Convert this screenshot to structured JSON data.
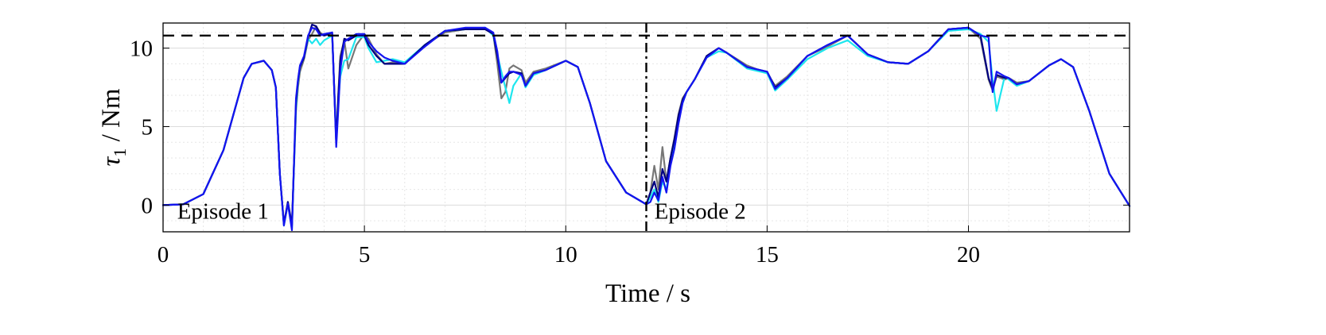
{
  "chart_data": {
    "type": "line",
    "xlabel": "Time / s",
    "ylabel": "τ1 / Nm",
    "ylabel_main": "τ",
    "ylabel_sub": "1",
    "ylabel_rest": " / Nm",
    "xlim": [
      0,
      24
    ],
    "ylim": [
      -1.7,
      11.6
    ],
    "x_ticks": [
      0,
      5,
      10,
      15,
      20
    ],
    "x_tick_labels": [
      "0",
      "5",
      "10",
      "15",
      "20"
    ],
    "y_ticks": [
      0,
      5,
      10
    ],
    "y_tick_labels": [
      "0",
      "5",
      "10"
    ],
    "grid": true,
    "minor_grid": true,
    "colors": {
      "gray": "#777777",
      "cyan": "#1ee6ee",
      "navy": "#000080",
      "blue": "#1414f0",
      "limit": "#000000",
      "divider": "#000000"
    },
    "threshold": {
      "y": 10.8,
      "style": "dashed"
    },
    "divider": {
      "x": 12,
      "style": "dash-dot"
    },
    "annotations": [
      {
        "text": "Episode 1",
        "x": 0.35,
        "y": -0.35
      },
      {
        "text": "Episode 2",
        "x": 12.2,
        "y": -0.35
      }
    ],
    "series": [
      {
        "color_key": "gray",
        "x": [
          0,
          0.5,
          1,
          1.5,
          2,
          2.2,
          2.5,
          2.7,
          2.8,
          2.9,
          3.0,
          3.1,
          3.2,
          3.3,
          3.35,
          3.4,
          3.5,
          3.6,
          3.7,
          3.8,
          3.9,
          4.0,
          4.2,
          4.3,
          4.35,
          4.4,
          4.5,
          4.6,
          4.8,
          5.0,
          5.1,
          5.3,
          5.5,
          5.7,
          6.0,
          6.5,
          7.0,
          7.5,
          8.0,
          8.2,
          8.3,
          8.4,
          8.5,
          8.6,
          8.7,
          8.9,
          9.0,
          9.2,
          9.5,
          10.0,
          10.3,
          10.6,
          11.0,
          11.5,
          12.0,
          12.1,
          12.2,
          12.3,
          12.4,
          12.5,
          12.6,
          12.7,
          12.8,
          12.9,
          13.0,
          13.2,
          13.5,
          13.8,
          14.0,
          14.5,
          15.0,
          15.2,
          15.5,
          16.0,
          16.5,
          17.0,
          17.5,
          18.0,
          18.5,
          19.0,
          19.5,
          20.0,
          20.3,
          20.5,
          20.6,
          20.7,
          20.9,
          21.0,
          21.2,
          21.5,
          22.0,
          22.3,
          22.6,
          23.0,
          23.5,
          24.0
        ],
        "y": [
          0,
          0.05,
          0.7,
          3.5,
          8.1,
          9.0,
          9.2,
          8.6,
          7.5,
          2.0,
          -1.2,
          0.2,
          -1.2,
          6.0,
          7.5,
          8.5,
          9.3,
          10.5,
          10.9,
          11.4,
          11.0,
          10.8,
          10.9,
          4.0,
          7.0,
          9.5,
          10.5,
          8.7,
          10.2,
          10.9,
          10.6,
          9.6,
          9.0,
          9.1,
          9.0,
          10.2,
          11.0,
          11.2,
          11.2,
          10.9,
          9.0,
          6.8,
          7.2,
          8.7,
          8.9,
          8.6,
          7.8,
          8.5,
          8.7,
          9.2,
          8.8,
          6.5,
          2.8,
          0.8,
          0.05,
          0.8,
          2.5,
          1.0,
          3.7,
          1.5,
          3.0,
          4.3,
          5.8,
          6.8,
          7.2,
          8.0,
          9.5,
          10.0,
          9.7,
          8.9,
          8.4,
          7.6,
          8.2,
          9.5,
          10.1,
          10.8,
          9.6,
          9.1,
          9.0,
          9.8,
          11.2,
          11.3,
          10.6,
          8.0,
          7.3,
          8.2,
          8.0,
          8.1,
          7.8,
          7.9,
          8.9,
          9.3,
          8.8,
          6.0,
          2.0,
          -0.05
        ]
      },
      {
        "color_key": "cyan",
        "x": [
          0,
          0.5,
          1,
          1.5,
          2,
          2.2,
          2.5,
          2.7,
          2.8,
          2.9,
          3.0,
          3.1,
          3.2,
          3.3,
          3.35,
          3.4,
          3.5,
          3.6,
          3.7,
          3.8,
          3.9,
          4.0,
          4.2,
          4.3,
          4.35,
          4.4,
          4.5,
          4.6,
          4.8,
          5.0,
          5.1,
          5.3,
          5.5,
          5.7,
          6.0,
          6.5,
          7.0,
          7.5,
          8.0,
          8.2,
          8.3,
          8.4,
          8.5,
          8.6,
          8.7,
          8.9,
          9.0,
          9.2,
          9.5,
          10.0,
          10.3,
          10.6,
          11.0,
          11.5,
          12.0,
          12.1,
          12.2,
          12.3,
          12.4,
          12.5,
          12.6,
          12.7,
          12.8,
          12.9,
          13.0,
          13.2,
          13.5,
          13.8,
          14.0,
          14.5,
          15.0,
          15.2,
          15.5,
          16.0,
          16.5,
          17.0,
          17.5,
          18.0,
          18.5,
          19.0,
          19.5,
          20.0,
          20.3,
          20.5,
          20.6,
          20.7,
          20.9,
          21.0,
          21.2,
          21.5,
          22.0,
          22.3,
          22.6,
          23.0,
          23.5,
          24.0
        ],
        "y": [
          0,
          0.05,
          0.7,
          3.5,
          8.1,
          9.0,
          9.2,
          8.6,
          7.5,
          2.0,
          -1.3,
          0.1,
          -1.5,
          6.2,
          7.8,
          8.8,
          9.4,
          10.6,
          10.3,
          10.6,
          10.2,
          10.5,
          10.8,
          4.2,
          6.5,
          8.2,
          9.2,
          9.3,
          10.7,
          10.7,
          10.0,
          9.1,
          9.2,
          9.3,
          9.1,
          10.2,
          11.1,
          11.2,
          11.3,
          10.8,
          9.6,
          8.5,
          7.5,
          6.5,
          7.6,
          8.4,
          7.5,
          8.3,
          8.6,
          9.2,
          8.8,
          6.5,
          2.8,
          0.8,
          0.05,
          0.5,
          1.0,
          0.2,
          1.5,
          1.0,
          2.8,
          4.0,
          5.5,
          6.5,
          7.2,
          8.0,
          9.4,
          9.8,
          9.7,
          8.7,
          8.4,
          7.3,
          8.0,
          9.3,
          10.0,
          10.5,
          9.5,
          9.1,
          9.0,
          9.8,
          11.1,
          11.2,
          10.9,
          10.4,
          8.0,
          6.0,
          8.2,
          8.0,
          7.6,
          7.9,
          8.9,
          9.3,
          8.8,
          6.0,
          2.0,
          -0.05
        ]
      },
      {
        "color_key": "navy",
        "x": [
          0,
          0.5,
          1,
          1.5,
          2,
          2.2,
          2.5,
          2.7,
          2.8,
          2.9,
          3.0,
          3.1,
          3.2,
          3.3,
          3.35,
          3.4,
          3.5,
          3.6,
          3.7,
          3.8,
          3.9,
          4.0,
          4.2,
          4.3,
          4.35,
          4.4,
          4.5,
          4.6,
          4.8,
          5.0,
          5.1,
          5.3,
          5.5,
          5.7,
          6.0,
          6.5,
          7.0,
          7.5,
          8.0,
          8.2,
          8.3,
          8.4,
          8.5,
          8.6,
          8.7,
          8.9,
          9.0,
          9.2,
          9.5,
          10.0,
          10.3,
          10.6,
          11.0,
          11.5,
          12.0,
          12.1,
          12.2,
          12.3,
          12.4,
          12.5,
          12.6,
          12.7,
          12.8,
          12.9,
          13.0,
          13.2,
          13.5,
          13.8,
          14.0,
          14.5,
          15.0,
          15.2,
          15.5,
          16.0,
          16.5,
          17.0,
          17.5,
          18.0,
          18.5,
          19.0,
          19.5,
          20.0,
          20.3,
          20.5,
          20.6,
          20.7,
          20.9,
          21.0,
          21.2,
          21.5,
          22.0,
          22.3,
          22.6,
          23.0,
          23.5,
          24.0
        ],
        "y": [
          0,
          0.05,
          0.7,
          3.5,
          8.1,
          9.0,
          9.2,
          8.6,
          7.5,
          2.0,
          -1.2,
          0.2,
          -1.3,
          6.5,
          7.9,
          8.8,
          9.4,
          10.7,
          11.5,
          11.4,
          10.9,
          10.8,
          11.0,
          4.0,
          6.8,
          9.2,
          10.6,
          10.5,
          10.8,
          10.8,
          10.2,
          9.5,
          9.0,
          9.0,
          9.0,
          10.2,
          11.1,
          11.2,
          11.2,
          10.9,
          9.5,
          7.8,
          8.1,
          8.4,
          8.5,
          8.4,
          7.6,
          8.4,
          8.6,
          9.2,
          8.8,
          6.5,
          2.8,
          0.8,
          0.05,
          0.8,
          1.5,
          0.5,
          2.3,
          1.5,
          3.0,
          4.2,
          5.7,
          6.7,
          7.2,
          8.0,
          9.5,
          10.0,
          9.7,
          8.8,
          8.5,
          7.5,
          8.1,
          9.5,
          10.2,
          10.8,
          9.6,
          9.1,
          9.0,
          9.8,
          11.2,
          11.3,
          10.8,
          8.1,
          7.4,
          8.3,
          8.1,
          8.1,
          7.7,
          7.9,
          8.9,
          9.3,
          8.8,
          6.0,
          2.0,
          -0.05
        ]
      },
      {
        "color_key": "blue",
        "x": [
          0,
          0.5,
          1,
          1.5,
          2,
          2.2,
          2.5,
          2.7,
          2.8,
          2.9,
          3.0,
          3.1,
          3.2,
          3.3,
          3.35,
          3.4,
          3.5,
          3.6,
          3.7,
          3.8,
          3.9,
          4.0,
          4.2,
          4.3,
          4.35,
          4.4,
          4.5,
          4.6,
          4.8,
          5.0,
          5.1,
          5.3,
          5.5,
          5.7,
          6.0,
          6.5,
          7.0,
          7.5,
          8.0,
          8.2,
          8.3,
          8.4,
          8.5,
          8.6,
          8.7,
          8.9,
          9.0,
          9.2,
          9.5,
          10.0,
          10.3,
          10.6,
          11.0,
          11.5,
          12.0,
          12.1,
          12.2,
          12.3,
          12.4,
          12.5,
          12.6,
          12.7,
          12.8,
          12.9,
          13.0,
          13.2,
          13.5,
          13.8,
          14.0,
          14.5,
          15.0,
          15.2,
          15.5,
          16.0,
          16.5,
          17.0,
          17.5,
          18.0,
          18.5,
          19.0,
          19.5,
          20.0,
          20.3,
          20.5,
          20.6,
          20.7,
          20.9,
          21.0,
          21.2,
          21.5,
          22.0,
          22.3,
          22.6,
          23.0,
          23.5,
          24.0
        ],
        "y": [
          0,
          0.05,
          0.7,
          3.5,
          8.1,
          9.0,
          9.2,
          8.6,
          7.5,
          2.0,
          -1.3,
          0.1,
          -1.6,
          6.8,
          8.0,
          8.9,
          9.5,
          10.8,
          11.3,
          11.2,
          10.8,
          10.9,
          11.0,
          3.7,
          6.0,
          8.6,
          10.4,
          10.6,
          10.9,
          10.9,
          10.4,
          9.8,
          9.4,
          9.2,
          9.0,
          10.1,
          11.1,
          11.3,
          11.3,
          11.0,
          9.8,
          7.8,
          8.2,
          8.5,
          8.5,
          8.3,
          7.6,
          8.4,
          8.6,
          9.2,
          8.8,
          6.5,
          2.8,
          0.8,
          0.05,
          0.2,
          0.8,
          0.3,
          1.8,
          0.8,
          2.5,
          3.6,
          5.2,
          6.5,
          7.2,
          8.0,
          9.4,
          10.0,
          9.7,
          8.8,
          8.5,
          7.4,
          8.1,
          9.5,
          10.2,
          10.8,
          9.6,
          9.1,
          9.0,
          9.8,
          11.2,
          11.3,
          10.8,
          10.7,
          7.2,
          8.5,
          8.2,
          8.1,
          7.7,
          7.9,
          8.9,
          9.3,
          8.8,
          6.0,
          2.0,
          -0.05
        ]
      }
    ]
  }
}
